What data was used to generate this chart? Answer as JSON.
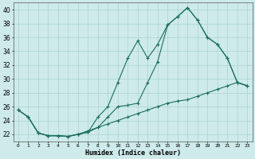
{
  "xlabel": "Humidex (Indice chaleur)",
  "xlim": [
    -0.5,
    23.5
  ],
  "ylim": [
    21,
    41
  ],
  "yticks": [
    22,
    24,
    26,
    28,
    30,
    32,
    34,
    36,
    38,
    40
  ],
  "xticks": [
    0,
    1,
    2,
    3,
    4,
    5,
    6,
    7,
    8,
    9,
    10,
    11,
    12,
    13,
    14,
    15,
    16,
    17,
    18,
    19,
    20,
    21,
    22,
    23
  ],
  "bg_color": "#ceeaea",
  "line_color": "#1a6e5e",
  "line1_x": [
    0,
    1,
    2,
    3,
    4,
    5,
    6,
    7,
    8,
    9,
    10,
    11,
    12,
    13,
    14,
    15,
    16,
    17,
    18,
    19,
    20,
    21,
    22,
    23
  ],
  "line1_y": [
    25.5,
    24.5,
    22.2,
    21.8,
    21.8,
    21.7,
    22.0,
    22.3,
    23.0,
    24.5,
    26.0,
    26.2,
    26.5,
    29.5,
    32.5,
    37.8,
    39.0,
    40.3,
    38.5,
    36.0,
    35.0,
    33.0,
    29.5,
    29.0
  ],
  "line2_x": [
    0,
    1,
    2,
    3,
    4,
    5,
    6,
    7,
    8,
    9,
    10,
    11,
    12,
    13,
    14,
    15,
    16,
    17,
    18,
    19,
    20,
    21,
    22,
    23
  ],
  "line2_y": [
    25.5,
    24.5,
    22.2,
    21.8,
    21.8,
    21.7,
    22.0,
    22.5,
    23.0,
    23.5,
    24.0,
    24.5,
    25.0,
    25.5,
    26.0,
    26.5,
    26.8,
    27.0,
    27.5,
    28.0,
    28.5,
    29.0,
    29.5,
    29.0
  ],
  "line3_x": [
    0,
    1,
    2,
    3,
    4,
    5,
    6,
    7,
    8,
    9,
    10,
    11,
    12,
    13,
    14,
    15,
    16,
    17,
    18,
    19,
    20,
    21,
    22,
    23
  ],
  "line3_y": [
    25.5,
    24.5,
    22.2,
    21.8,
    21.8,
    21.7,
    22.0,
    22.3,
    24.5,
    26.0,
    29.5,
    33.0,
    35.5,
    33.0,
    35.0,
    37.8,
    39.0,
    40.3,
    38.5,
    36.0,
    35.0,
    33.0,
    29.5,
    29.0
  ]
}
